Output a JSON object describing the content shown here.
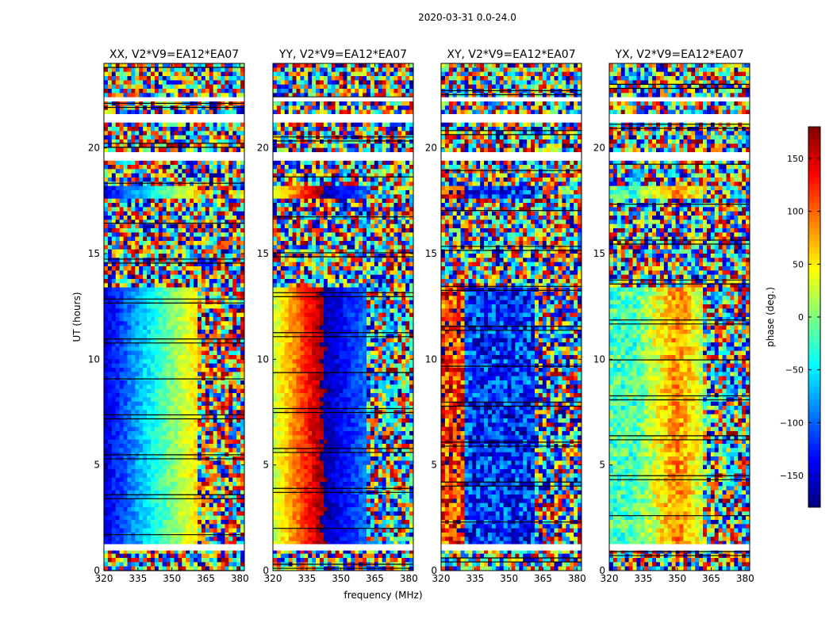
{
  "figure": {
    "suptitle": "2020-03-31 0.0-24.0",
    "xlabel": "frequency (MHz)",
    "ylabel": "UT (hours)"
  },
  "chart_data": {
    "type": "heatmap",
    "title": "2020-03-31 0.0-24.0",
    "xlabel": "frequency (MHz)",
    "ylabel": "UT (hours)",
    "xlim": [
      320,
      382
    ],
    "ylim": [
      0,
      24
    ],
    "xticks": [
      320,
      335,
      350,
      365,
      380
    ],
    "yticks": [
      0,
      5,
      10,
      15,
      20
    ],
    "panels": [
      {
        "title": "XX, V2*V9=EA12*EA07",
        "pattern": "xx"
      },
      {
        "title": "YY, V2*V9=EA12*EA07",
        "pattern": "yy"
      },
      {
        "title": "XY, V2*V9=EA12*EA07",
        "pattern": "xy"
      },
      {
        "title": "YX, V2*V9=EA12*EA07",
        "pattern": "yx"
      }
    ],
    "colorbar": {
      "label": "phase (deg.)",
      "range": [
        -180,
        180
      ],
      "ticks": [
        150,
        100,
        50,
        0,
        -50,
        -100,
        -150
      ],
      "tick_labels": [
        "150",
        "100",
        "50",
        "0",
        "−50",
        "−100",
        "−150"
      ],
      "colormap": "jet"
    },
    "blank_intervals_hours": [
      [
        0.95,
        1.25
      ],
      [
        19.4,
        19.8
      ],
      [
        21.3,
        21.6
      ],
      [
        22.2,
        22.4
      ]
    ],
    "coherent_intervals_hours": [
      [
        1.25,
        13.4
      ],
      [
        17.7,
        18.3
      ]
    ]
  }
}
